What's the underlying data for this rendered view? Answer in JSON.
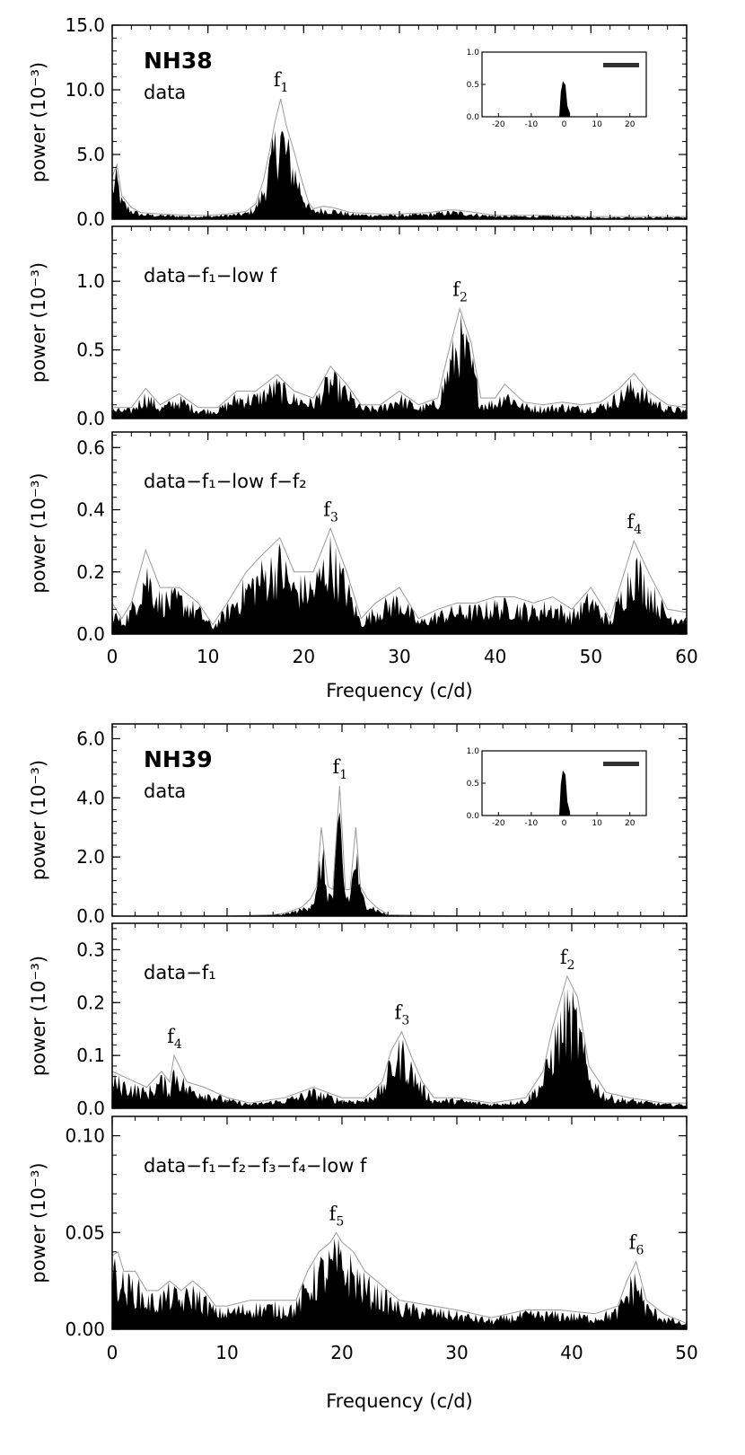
{
  "chart_data": [
    {
      "type": "area",
      "star": "NH38",
      "xlabel": "Frequency (c/d)",
      "xlim": [
        0,
        60
      ],
      "xticks": [
        "0",
        "10",
        "20",
        "30",
        "40",
        "50",
        "60"
      ],
      "panels": [
        {
          "label": "data",
          "ylabel": "power (10⁻³)",
          "ylim": [
            0,
            15
          ],
          "yticks": [
            "0.0",
            "5.0",
            "10.0",
            "15.0"
          ],
          "peaks": [
            {
              "name": "f",
              "sub": "1",
              "x": 17.6,
              "y": 9.3
            }
          ],
          "series": [
            {
              "x": [
                0,
                0.5,
                1,
                2,
                3,
                5,
                8,
                10,
                12,
                13,
                14,
                15,
                15.8,
                16.5,
                17,
                17.6,
                18.2,
                19,
                19.8,
                20.5,
                21,
                22,
                23,
                24,
                25,
                28,
                30,
                33,
                35,
                36,
                38,
                40,
                45,
                50,
                55,
                60
              ],
              "y": [
                3.3,
                4.2,
                1.8,
                0.9,
                0.5,
                0.4,
                0.3,
                0.3,
                0.4,
                0.5,
                0.6,
                1.2,
                3.0,
                5.5,
                7.5,
                9.3,
                7.2,
                5.2,
                3.0,
                1.3,
                0.8,
                1.0,
                0.9,
                0.7,
                0.5,
                0.4,
                0.4,
                0.5,
                0.7,
                0.7,
                0.5,
                0.3,
                0.3,
                0.2,
                0.2,
                0.2
              ]
            }
          ],
          "inset": {
            "yticks": [
              "0.0",
              "0.5",
              "1.0"
            ],
            "xticks": [
              "-20",
              "-10",
              "0",
              "10",
              "20"
            ],
            "xlim": [
              -25,
              25
            ],
            "ylim": [
              0,
              1
            ],
            "peak_x": 0,
            "peak_y": 0.55
          }
        },
        {
          "label": "data−f₁−low f",
          "ylabel": "power (10⁻³)",
          "ylim": [
            0,
            1.4
          ],
          "yticks": [
            "0.0",
            "0.5",
            "1.0"
          ],
          "peaks": [
            {
              "name": "f",
              "sub": "2",
              "x": 36.3,
              "y": 0.8
            }
          ],
          "series": [
            {
              "x": [
                0,
                2,
                3.5,
                5,
                7,
                9,
                11,
                13,
                15,
                17.2,
                19,
                21,
                22.8,
                24.5,
                26,
                28,
                30,
                32,
                34,
                35,
                36.3,
                37.5,
                38.5,
                40,
                41,
                43,
                45,
                47,
                49,
                51,
                53,
                54.5,
                56,
                58,
                60
              ],
              "y": [
                0.08,
                0.08,
                0.22,
                0.1,
                0.18,
                0.08,
                0.08,
                0.2,
                0.2,
                0.32,
                0.2,
                0.15,
                0.38,
                0.25,
                0.1,
                0.1,
                0.2,
                0.1,
                0.15,
                0.45,
                0.8,
                0.55,
                0.15,
                0.15,
                0.25,
                0.12,
                0.1,
                0.12,
                0.1,
                0.12,
                0.22,
                0.33,
                0.2,
                0.1,
                0.08
              ]
            }
          ]
        },
        {
          "label": "data−f₁−low f−f₂",
          "ylabel": "power (10⁻³)",
          "ylim": [
            0,
            0.65
          ],
          "yticks": [
            "0.0",
            "0.2",
            "0.4",
            "0.6"
          ],
          "peaks": [
            {
              "name": "f",
              "sub": "3",
              "x": 22.8,
              "y": 0.34
            },
            {
              "name": "f",
              "sub": "4",
              "x": 54.5,
              "y": 0.3
            }
          ],
          "series": [
            {
              "x": [
                0,
                1,
                2,
                3.5,
                5,
                7,
                9,
                10.5,
                12,
                14,
                15.5,
                17.5,
                19,
                21,
                22.8,
                24.5,
                26,
                27.5,
                30,
                32,
                34,
                36,
                38,
                40,
                42,
                44,
                46,
                48,
                50,
                52,
                53.5,
                54.5,
                56,
                58,
                60
              ],
              "y": [
                0.1,
                0.05,
                0.1,
                0.27,
                0.15,
                0.15,
                0.1,
                0.03,
                0.1,
                0.2,
                0.25,
                0.31,
                0.2,
                0.2,
                0.34,
                0.2,
                0.05,
                0.1,
                0.15,
                0.05,
                0.08,
                0.1,
                0.1,
                0.12,
                0.12,
                0.1,
                0.12,
                0.08,
                0.15,
                0.05,
                0.2,
                0.3,
                0.2,
                0.08,
                0.07
              ]
            }
          ]
        }
      ]
    },
    {
      "type": "area",
      "star": "NH39",
      "xlabel": "Frequency (c/d)",
      "xlim": [
        0,
        50
      ],
      "xticks": [
        "0",
        "10",
        "20",
        "30",
        "40",
        "50"
      ],
      "panels": [
        {
          "label": "data",
          "ylabel": "power (10⁻³)",
          "ylim": [
            0,
            6.5
          ],
          "yticks": [
            "0.0",
            "2.0",
            "4.0",
            "6.0"
          ],
          "peaks": [
            {
              "name": "f",
              "sub": "1",
              "x": 19.8,
              "y": 4.4
            }
          ],
          "series": [
            {
              "x": [
                0,
                10,
                14,
                15,
                16.5,
                17.3,
                17.8,
                18.2,
                18.8,
                19.2,
                19.8,
                20.3,
                20.7,
                21.2,
                21.6,
                22.2,
                23,
                24,
                30,
                40,
                50
              ],
              "y": [
                0.0,
                0.0,
                0.05,
                0.1,
                0.3,
                0.6,
                1.0,
                3.0,
                1.0,
                0.9,
                4.4,
                0.9,
                0.9,
                3.0,
                1.0,
                0.6,
                0.3,
                0.05,
                0.0,
                0.0,
                0.0
              ]
            }
          ],
          "inset": {
            "yticks": [
              "0.0",
              "0.5",
              "1.0"
            ],
            "xticks": [
              "-20",
              "-10",
              "0",
              "10",
              "20"
            ],
            "xlim": [
              -25,
              25
            ],
            "ylim": [
              0,
              1
            ],
            "peak_x": 0,
            "peak_y": 0.7
          }
        },
        {
          "label": "data−f₁",
          "ylabel": "power (10⁻³)",
          "ylim": [
            0,
            0.35
          ],
          "yticks": [
            "0.0",
            "0.1",
            "0.2",
            "0.3"
          ],
          "peaks": [
            {
              "name": "f",
              "sub": "4",
              "x": 5.4,
              "y": 0.1
            },
            {
              "name": "f",
              "sub": "3",
              "x": 25.2,
              "y": 0.145
            },
            {
              "name": "f",
              "sub": "2",
              "x": 39.6,
              "y": 0.25
            }
          ],
          "series": [
            {
              "x": [
                0,
                1,
                2,
                3,
                4.3,
                5,
                5.4,
                6.5,
                8,
                10,
                12,
                15,
                17.5,
                20,
                22,
                23.5,
                24.3,
                25.2,
                26,
                27,
                28,
                30,
                33,
                36,
                37.5,
                38.3,
                39.6,
                40.5,
                41.5,
                43,
                45,
                48,
                50
              ],
              "y": [
                0.07,
                0.06,
                0.05,
                0.04,
                0.07,
                0.05,
                0.1,
                0.05,
                0.04,
                0.02,
                0.01,
                0.02,
                0.04,
                0.02,
                0.02,
                0.05,
                0.11,
                0.145,
                0.1,
                0.05,
                0.02,
                0.02,
                0.01,
                0.02,
                0.07,
                0.15,
                0.25,
                0.21,
                0.08,
                0.03,
                0.02,
                0.01,
                0.01
              ]
            }
          ]
        },
        {
          "label": "data−f₁−f₂−f₃−f₄−low f",
          "ylabel": "power (10⁻³)",
          "ylim": [
            0,
            0.11
          ],
          "yticks": [
            "0.00",
            "0.05",
            "0.10"
          ],
          "peaks": [
            {
              "name": "f",
              "sub": "5",
              "x": 19.5,
              "y": 0.05
            },
            {
              "name": "f",
              "sub": "6",
              "x": 45.6,
              "y": 0.035
            }
          ],
          "series": [
            {
              "x": [
                0,
                0.5,
                1,
                2,
                3,
                4,
                5,
                6,
                7,
                8,
                9,
                10,
                12,
                14,
                16,
                17,
                18,
                19,
                19.5,
                20,
                21,
                22,
                23,
                25,
                28,
                30,
                33,
                36,
                39,
                42,
                44,
                44.8,
                45.6,
                46.5,
                48,
                50
              ],
              "y": [
                0.038,
                0.04,
                0.03,
                0.03,
                0.02,
                0.02,
                0.025,
                0.02,
                0.025,
                0.02,
                0.012,
                0.012,
                0.015,
                0.015,
                0.015,
                0.03,
                0.04,
                0.045,
                0.05,
                0.045,
                0.04,
                0.03,
                0.025,
                0.015,
                0.012,
                0.01,
                0.006,
                0.01,
                0.01,
                0.008,
                0.012,
                0.025,
                0.035,
                0.015,
                0.008,
                0.003
              ]
            }
          ]
        }
      ]
    }
  ]
}
